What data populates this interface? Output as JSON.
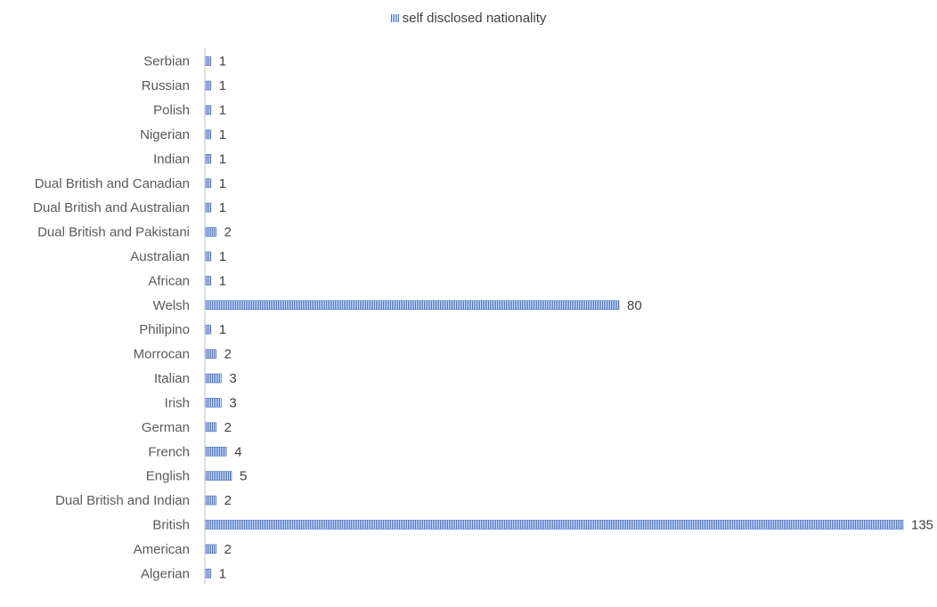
{
  "chart_data": {
    "type": "bar",
    "orientation": "horizontal",
    "title": "",
    "xlabel": "",
    "ylabel": "",
    "categories": [
      "Algerian",
      "American",
      "British",
      "Dual British and Indian",
      "English",
      "French",
      "German",
      "Irish",
      "Italian",
      "Morrocan",
      "Philipino",
      "Welsh",
      "African",
      "Australian",
      "Dual British and Pakistani",
      "Dual British and Australian",
      "Dual British and Canadian",
      "Indian",
      "Nigerian",
      "Polish",
      "Russian",
      "Serbian"
    ],
    "series": [
      {
        "name": "self disclosed nationality",
        "values": [
          1,
          2,
          135,
          2,
          5,
          4,
          2,
          3,
          3,
          2,
          1,
          80,
          1,
          1,
          2,
          1,
          1,
          1,
          1,
          1,
          1,
          1
        ]
      }
    ],
    "xlim": [
      0,
      135
    ],
    "grid": false,
    "legend_position": "top",
    "data_labels": true,
    "bar_color": "#4472C4"
  }
}
